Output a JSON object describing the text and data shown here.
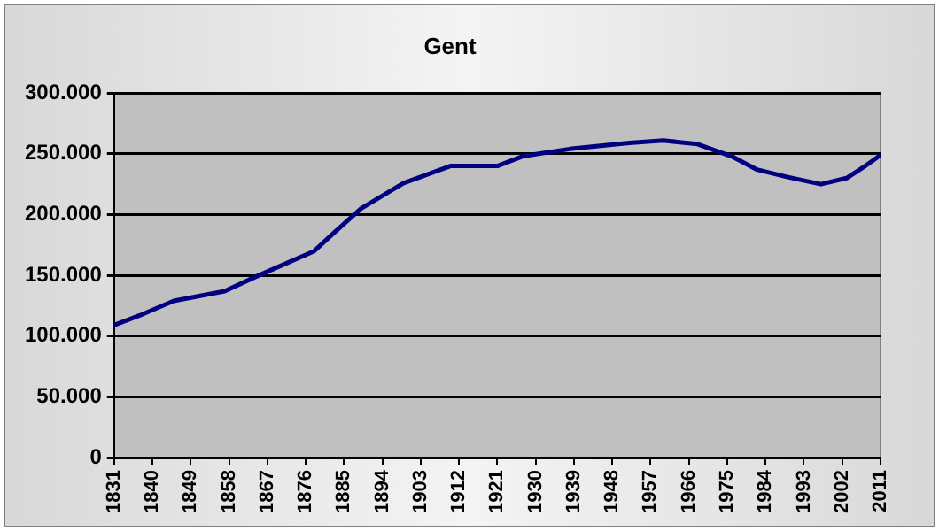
{
  "chart_data": {
    "type": "line",
    "title": "Gent",
    "x": [
      1831,
      1837,
      1845,
      1857,
      1865,
      1878,
      1882,
      1889,
      1899,
      1910,
      1921,
      1927,
      1938,
      1952,
      1960,
      1968,
      1976,
      1982,
      1989,
      1997,
      2003,
      2007,
      2011
    ],
    "series": [
      {
        "color": "#000080",
        "values": [
          109000,
          117000,
          129000,
          137000,
          150000,
          170000,
          183000,
          205000,
          226000,
          240000,
          240000,
          248000,
          254000,
          259000,
          261000,
          258000,
          248000,
          237000,
          231000,
          225000,
          230000,
          239000,
          249000
        ]
      }
    ],
    "xlim": [
      1831,
      2011
    ],
    "xticks": [
      1831,
      1840,
      1849,
      1858,
      1867,
      1876,
      1885,
      1894,
      1903,
      1912,
      1921,
      1930,
      1939,
      1948,
      1957,
      1966,
      1975,
      1984,
      1993,
      2002,
      2011
    ],
    "ylim": [
      0,
      300000
    ],
    "yticks": [
      {
        "value": 0,
        "label": "0"
      },
      {
        "value": 50000,
        "label": "50.000"
      },
      {
        "value": 100000,
        "label": "100.000"
      },
      {
        "value": 150000,
        "label": "150.000"
      },
      {
        "value": 200000,
        "label": "200.000"
      },
      {
        "value": 250000,
        "label": "250.000"
      },
      {
        "value": 300000,
        "label": "300.000"
      }
    ],
    "grid": "y",
    "legend": false,
    "marker": "none",
    "line_style": "solid"
  }
}
